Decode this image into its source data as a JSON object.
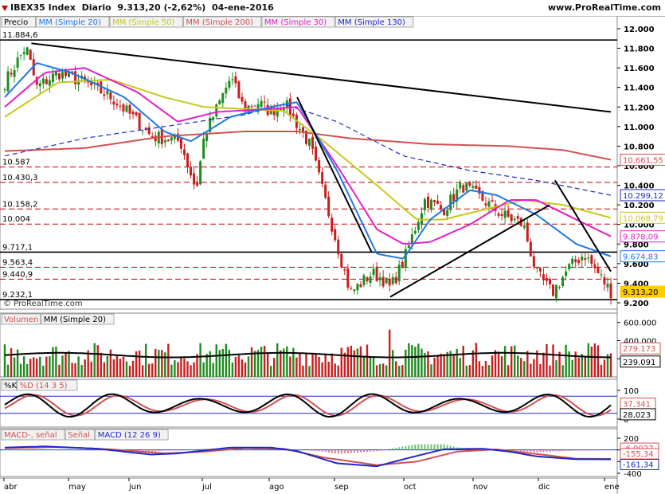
{
  "header": {
    "instrument": "IBEX35 Index",
    "period": "Diario",
    "last": "9.313,20 (-2,62%)",
    "date": "04-ene-2016",
    "site": "www.ProRealTime.com"
  },
  "colors": {
    "sma20": "#1e78e6",
    "sma50": "#c8c81e",
    "sma200": "#d25050",
    "sma30": "#e61ec8",
    "sma130": "#1e28c8",
    "candle_up": "#1e8c1e",
    "candle_down": "#c81e1e",
    "trend": "#000000",
    "level_dash": "#c80000",
    "price_tag": "#ffcc00"
  },
  "price_panel": {
    "legend": [
      "Precio",
      "MM (Simple 20)",
      "MM (Simple 50)",
      "MM (Simple 200)",
      "MM (Simple 30)",
      "MM (Simple 130)"
    ],
    "watermark": "© ProRealTime.com",
    "y_ticks": [
      "12.000",
      "11.800",
      "11.600",
      "11.400",
      "11.200",
      "11.000",
      "10.800",
      "10.600",
      "10.400",
      "10.200",
      "10.000",
      "9.800",
      "9.600",
      "9.400",
      "9.200"
    ],
    "level_labels": [
      {
        "text": "11.884,6",
        "value": 11884.6
      },
      {
        "text": "10.587",
        "value": 10587
      },
      {
        "text": "10.430,3",
        "value": 10430.3
      },
      {
        "text": "10.158,2",
        "value": 10158.2
      },
      {
        "text": "10.004",
        "value": 10004
      },
      {
        "text": "9.717,1",
        "value": 9717.1
      },
      {
        "text": "9.563,4",
        "value": 9563.4
      },
      {
        "text": "9.440,9",
        "value": 9440.9
      },
      {
        "text": "9.232,1",
        "value": 9232.1
      }
    ],
    "right_tags": [
      {
        "text": "10.661,55",
        "value": 10661.55,
        "color": "#d25050"
      },
      {
        "text": "10.299,12",
        "value": 10299.12,
        "color": "#1e28c8"
      },
      {
        "text": "10.068,79",
        "value": 10068.79,
        "color": "#c8c81e"
      },
      {
        "text": "9.878,09",
        "value": 9878.09,
        "color": "#e61ec8"
      },
      {
        "text": "9.674,83",
        "value": 9674.83,
        "color": "#1e78e6"
      },
      {
        "text": "9.313,20",
        "value": 9313.2,
        "color": "#ffcc00"
      }
    ]
  },
  "volume_panel": {
    "legend": [
      "Volumen",
      "MM (Simple 20)"
    ],
    "y_ticks": [
      "600.000",
      "400.000",
      "200.000"
    ],
    "tags": [
      {
        "text": "279.173",
        "color": "#d25050"
      },
      {
        "text": "239.091",
        "color": "#000000"
      }
    ]
  },
  "stoch_panel": {
    "legend": [
      "%K",
      "%D (14 3 5)"
    ],
    "y_ticks": [
      "100",
      "0"
    ],
    "tags": [
      {
        "text": "37,341",
        "color": "#d25050"
      },
      {
        "text": "28,023",
        "color": "#000000"
      }
    ]
  },
  "macd_panel": {
    "legend": [
      "MACD-, señal",
      "Señal",
      "MACD (12 26 9)"
    ],
    "y_ticks": [
      "200",
      "0",
      "-200",
      "-400"
    ],
    "tags": [
      {
        "text": "-6,0027",
        "color": "#d25050"
      },
      {
        "text": "-155,34",
        "color": "#d25050"
      },
      {
        "text": "-161,34",
        "color": "#1e28c8"
      }
    ]
  },
  "x_axis": {
    "months": [
      "abr",
      "may",
      "jun",
      "jul",
      "ago",
      "sep",
      "oct",
      "nov",
      "dic",
      "ene"
    ]
  },
  "chart_data": [
    {
      "type": "line",
      "title": "IBEX35 Index",
      "x": [
        "abr",
        "may",
        "jun",
        "jul",
        "ago",
        "sep",
        "oct",
        "nov",
        "dic",
        "ene"
      ],
      "series": [
        {
          "name": "Precio",
          "values": [
            11500,
            11450,
            11300,
            10950,
            11150,
            9700,
            9950,
            10350,
            10200,
            9313.2
          ]
        },
        {
          "name": "MM (Simple 20)",
          "values": [
            11350,
            11500,
            11400,
            11050,
            11200,
            10200,
            9800,
            10300,
            10450,
            9674.83
          ]
        },
        {
          "name": "MM (Simple 50)",
          "values": [
            11100,
            11450,
            11450,
            11200,
            11150,
            10700,
            10050,
            10100,
            10200,
            10068.79
          ]
        },
        {
          "name": "MM (Simple 200)",
          "values": [
            10750,
            10850,
            10950,
            10950,
            10950,
            10880,
            10830,
            10800,
            10780,
            10661.55
          ]
        }
      ],
      "ylim": [
        9200,
        12000
      ],
      "horizontal_levels": [
        11884.6,
        10587,
        10430.3,
        10158.2,
        10004,
        9717.1,
        9563.4,
        9440.9,
        9232.1
      ]
    },
    {
      "type": "bar",
      "title": "Volumen",
      "ylim": [
        0,
        650000
      ],
      "series_last": {
        "Volumen": 279173,
        "MM (Simple 20)": 239091
      }
    },
    {
      "type": "line",
      "title": "%K %D (14 3 5)",
      "ylim": [
        0,
        100
      ],
      "series_last": {
        "%K": 37.341,
        "%D": 28.023
      }
    },
    {
      "type": "line",
      "title": "MACD (12 26 9)",
      "ylim": [
        -400,
        200
      ],
      "series_last": {
        "MACD-, señal": -6.0027,
        "Señal": -155.34,
        "MACD": -161.34
      }
    }
  ]
}
